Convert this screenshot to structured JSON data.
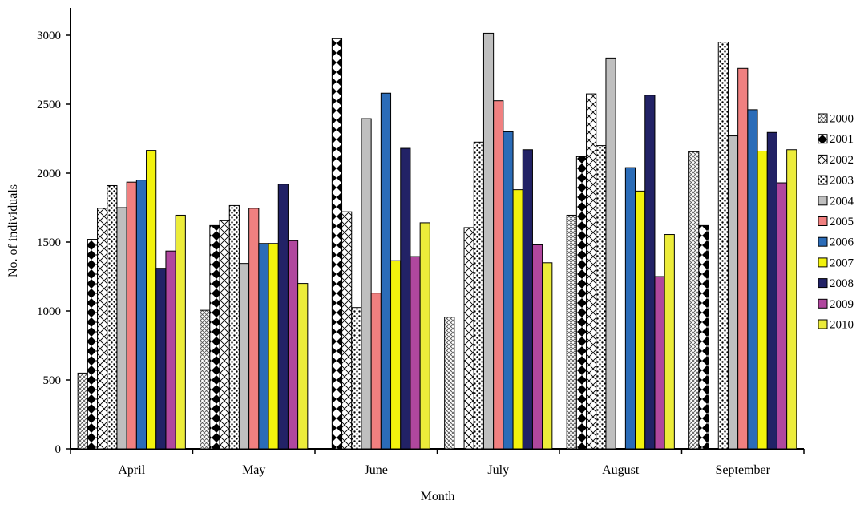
{
  "chart_data": {
    "type": "bar",
    "title": "",
    "xlabel": "Month",
    "ylabel": "No. of individuals",
    "ylim": [
      0,
      3000
    ],
    "yticks": [
      0,
      500,
      1000,
      1500,
      2000,
      2500,
      3000
    ],
    "grid": false,
    "legend_position": "right",
    "categories": [
      "April",
      "May",
      "June",
      "July",
      "August",
      "September"
    ],
    "series": [
      {
        "name": "2000",
        "fill": "#ffffff",
        "pattern": "crosshatch-fine",
        "values": [
          550,
          1005,
          null,
          955,
          1695,
          2155
        ]
      },
      {
        "name": "2001",
        "fill": "#ffffff",
        "pattern": "black-diamonds",
        "values": [
          1520,
          1620,
          2975,
          null,
          2120,
          1620
        ]
      },
      {
        "name": "2002",
        "fill": "#ffffff",
        "pattern": "diagonal-lattice",
        "values": [
          1745,
          1655,
          1720,
          1605,
          2575,
          null
        ]
      },
      {
        "name": "2003",
        "fill": "#ffffff",
        "pattern": "dots",
        "values": [
          1910,
          1765,
          1025,
          2225,
          2200,
          2950
        ]
      },
      {
        "name": "2004",
        "fill": "#bfbfbf",
        "pattern": "solid",
        "values": [
          1750,
          1345,
          2395,
          3015,
          2835,
          2270
        ]
      },
      {
        "name": "2005",
        "fill": "#f08080",
        "pattern": "solid",
        "values": [
          1935,
          1745,
          1130,
          2525,
          null,
          2760
        ]
      },
      {
        "name": "2006",
        "fill": "#2b6cb8",
        "pattern": "solid",
        "values": [
          1950,
          1490,
          2580,
          2300,
          2040,
          2460
        ]
      },
      {
        "name": "2007",
        "fill": "#f2f20d",
        "pattern": "solid",
        "values": [
          2165,
          1490,
          1365,
          1880,
          1870,
          2160
        ]
      },
      {
        "name": "2008",
        "fill": "#222266",
        "pattern": "solid",
        "values": [
          1310,
          1920,
          2180,
          2170,
          2565,
          2295
        ]
      },
      {
        "name": "2009",
        "fill": "#b0479e",
        "pattern": "solid",
        "values": [
          1435,
          1510,
          1395,
          1480,
          1250,
          1930
        ]
      },
      {
        "name": "2010",
        "fill": "#ecec3a",
        "pattern": "solid",
        "values": [
          1695,
          1200,
          1640,
          1350,
          1555,
          2170
        ]
      }
    ]
  }
}
